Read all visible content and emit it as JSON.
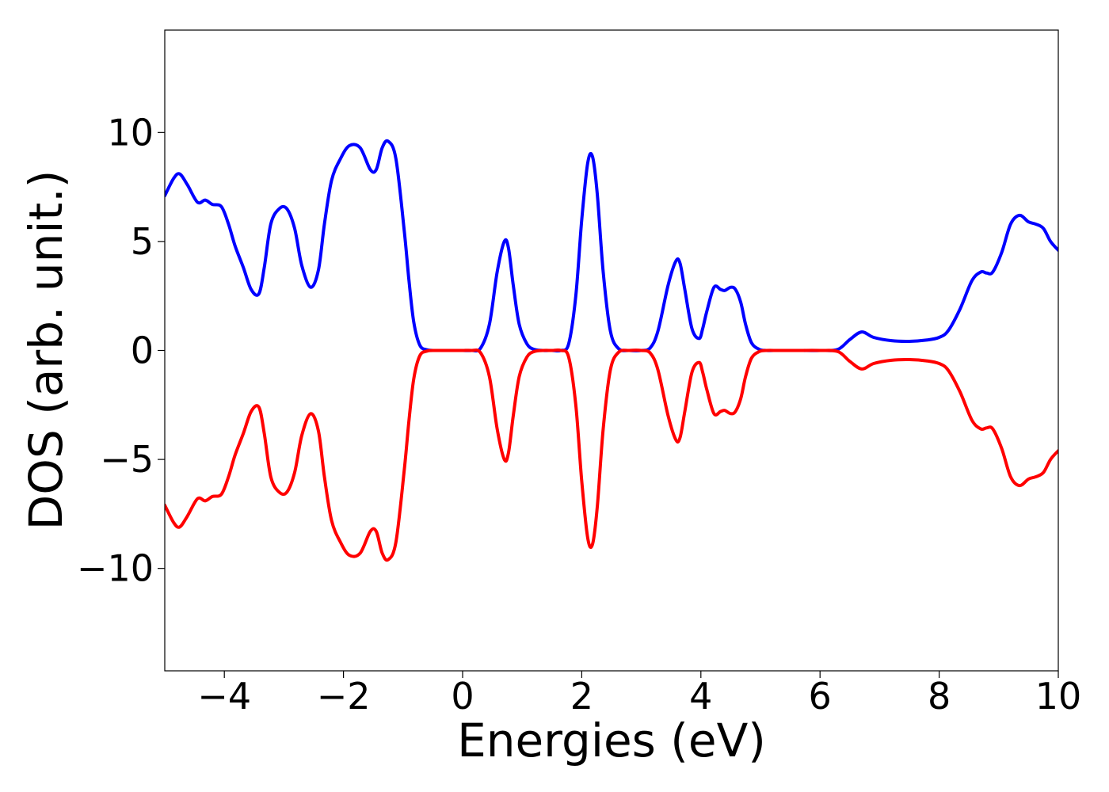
{
  "chart_data": {
    "type": "line",
    "title": "",
    "xlabel": "Energies (eV)",
    "ylabel": "DOS (arb. unit.)",
    "xlim": [
      -5,
      10
    ],
    "ylim": [
      -14.7,
      14.7
    ],
    "grid": false,
    "legend": "none",
    "x_ticks": [
      -4,
      -2,
      0,
      2,
      4,
      6,
      8,
      10
    ],
    "x_tick_labels": [
      "−4",
      "−2",
      "0",
      "2",
      "4",
      "6",
      "8",
      "10"
    ],
    "y_ticks": [
      -10,
      -5,
      0,
      5,
      10
    ],
    "y_tick_labels": [
      "−10",
      "−5",
      "0",
      "5",
      "10"
    ],
    "series": [
      {
        "color": "#0000ff",
        "x": [
          -5.0,
          -4.85,
          -4.75,
          -4.62,
          -4.45,
          -4.32,
          -4.2,
          -4.05,
          -3.93,
          -3.82,
          -3.68,
          -3.55,
          -3.42,
          -3.33,
          -3.22,
          -3.08,
          -2.95,
          -2.82,
          -2.7,
          -2.55,
          -2.42,
          -2.32,
          -2.2,
          -2.05,
          -1.9,
          -1.72,
          -1.55,
          -1.45,
          -1.35,
          -1.25,
          -1.12,
          -0.98,
          -0.9,
          -0.82,
          -0.72,
          -0.6,
          -0.45,
          -0.3,
          -0.15,
          0.0,
          0.15,
          0.3,
          0.45,
          0.58,
          0.7,
          0.77,
          0.85,
          0.95,
          1.08,
          1.2,
          1.35,
          1.5,
          1.65,
          1.78,
          1.9,
          2.0,
          2.1,
          2.18,
          2.26,
          2.36,
          2.48,
          2.62,
          2.8,
          3.0,
          3.15,
          3.28,
          3.45,
          3.58,
          3.65,
          3.73,
          3.85,
          3.97,
          4.03,
          4.1,
          4.22,
          4.33,
          4.4,
          4.5,
          4.58,
          4.67,
          4.75,
          4.85,
          4.98,
          5.1,
          5.3,
          5.6,
          6.0,
          6.3,
          6.5,
          6.7,
          6.9,
          7.2,
          7.5,
          7.8,
          8.0,
          8.15,
          8.35,
          8.55,
          8.7,
          8.8,
          8.9,
          9.05,
          9.2,
          9.35,
          9.5,
          9.62,
          9.75,
          9.87,
          10.0
        ],
        "values": [
          7.1,
          7.9,
          8.1,
          7.6,
          6.8,
          6.9,
          6.7,
          6.6,
          5.8,
          4.8,
          3.8,
          2.8,
          2.6,
          3.8,
          5.8,
          6.5,
          6.5,
          5.6,
          3.9,
          2.9,
          3.7,
          5.8,
          7.8,
          8.8,
          9.4,
          9.3,
          8.3,
          8.3,
          9.3,
          9.6,
          8.8,
          5.5,
          3.2,
          1.3,
          0.25,
          0.03,
          0.0,
          0.0,
          0.0,
          0.0,
          0.0,
          0.1,
          1.2,
          3.6,
          5.0,
          4.7,
          3.0,
          1.2,
          0.3,
          0.05,
          0.0,
          0.0,
          0.0,
          0.3,
          2.5,
          6.0,
          8.6,
          8.9,
          7.2,
          3.6,
          0.9,
          0.08,
          0.0,
          0.0,
          0.12,
          0.9,
          3.0,
          4.1,
          4.0,
          2.8,
          1.0,
          0.55,
          1.0,
          1.8,
          2.9,
          2.8,
          2.75,
          2.9,
          2.8,
          2.2,
          1.2,
          0.35,
          0.05,
          0.0,
          0.0,
          0.0,
          0.0,
          0.05,
          0.5,
          0.85,
          0.6,
          0.45,
          0.42,
          0.48,
          0.6,
          0.9,
          1.9,
          3.2,
          3.6,
          3.55,
          3.6,
          4.5,
          5.8,
          6.2,
          5.9,
          5.8,
          5.6,
          5.0,
          4.6
        ]
      },
      {
        "color": "#ff0000",
        "x": [
          -5.0,
          -4.85,
          -4.75,
          -4.62,
          -4.45,
          -4.32,
          -4.2,
          -4.05,
          -3.93,
          -3.82,
          -3.68,
          -3.55,
          -3.42,
          -3.33,
          -3.22,
          -3.08,
          -2.95,
          -2.82,
          -2.7,
          -2.55,
          -2.42,
          -2.32,
          -2.2,
          -2.05,
          -1.9,
          -1.72,
          -1.55,
          -1.45,
          -1.35,
          -1.25,
          -1.12,
          -0.98,
          -0.9,
          -0.82,
          -0.72,
          -0.6,
          -0.45,
          -0.3,
          -0.15,
          0.0,
          0.15,
          0.3,
          0.45,
          0.58,
          0.7,
          0.77,
          0.85,
          0.95,
          1.08,
          1.2,
          1.35,
          1.5,
          1.65,
          1.78,
          1.9,
          2.0,
          2.1,
          2.18,
          2.26,
          2.36,
          2.48,
          2.62,
          2.8,
          3.0,
          3.15,
          3.28,
          3.45,
          3.58,
          3.65,
          3.73,
          3.85,
          3.97,
          4.03,
          4.1,
          4.22,
          4.33,
          4.4,
          4.5,
          4.58,
          4.67,
          4.75,
          4.85,
          4.98,
          5.1,
          5.3,
          5.6,
          6.0,
          6.3,
          6.5,
          6.7,
          6.9,
          7.2,
          7.5,
          7.8,
          8.0,
          8.15,
          8.35,
          8.55,
          8.7,
          8.8,
          8.9,
          9.05,
          9.2,
          9.35,
          9.5,
          9.62,
          9.75,
          9.87,
          10.0
        ],
        "values": [
          -7.1,
          -7.9,
          -8.1,
          -7.6,
          -6.8,
          -6.9,
          -6.7,
          -6.6,
          -5.8,
          -4.8,
          -3.8,
          -2.8,
          -2.6,
          -3.8,
          -5.8,
          -6.5,
          -6.5,
          -5.6,
          -3.9,
          -2.9,
          -3.7,
          -5.8,
          -7.8,
          -8.8,
          -9.4,
          -9.3,
          -8.3,
          -8.3,
          -9.3,
          -9.6,
          -8.8,
          -5.5,
          -3.2,
          -1.3,
          -0.25,
          -0.03,
          0.0,
          0.0,
          0.0,
          0.0,
          0.0,
          -0.1,
          -1.2,
          -3.6,
          -5.0,
          -4.7,
          -3.0,
          -1.2,
          -0.3,
          -0.05,
          0.0,
          0.0,
          0.0,
          -0.3,
          -2.5,
          -6.0,
          -8.6,
          -8.9,
          -7.2,
          -3.6,
          -0.9,
          -0.08,
          0.0,
          0.0,
          -0.12,
          -0.9,
          -3.0,
          -4.1,
          -4.0,
          -2.8,
          -1.0,
          -0.55,
          -1.0,
          -1.8,
          -2.9,
          -2.8,
          -2.75,
          -2.9,
          -2.8,
          -2.2,
          -1.2,
          -0.35,
          -0.05,
          0.0,
          0.0,
          0.0,
          0.0,
          -0.05,
          -0.5,
          -0.85,
          -0.6,
          -0.45,
          -0.42,
          -0.48,
          -0.6,
          -0.9,
          -1.9,
          -3.2,
          -3.6,
          -3.55,
          -3.6,
          -4.5,
          -5.8,
          -6.2,
          -5.9,
          -5.8,
          -5.6,
          -5.0,
          -4.6
        ]
      }
    ]
  }
}
